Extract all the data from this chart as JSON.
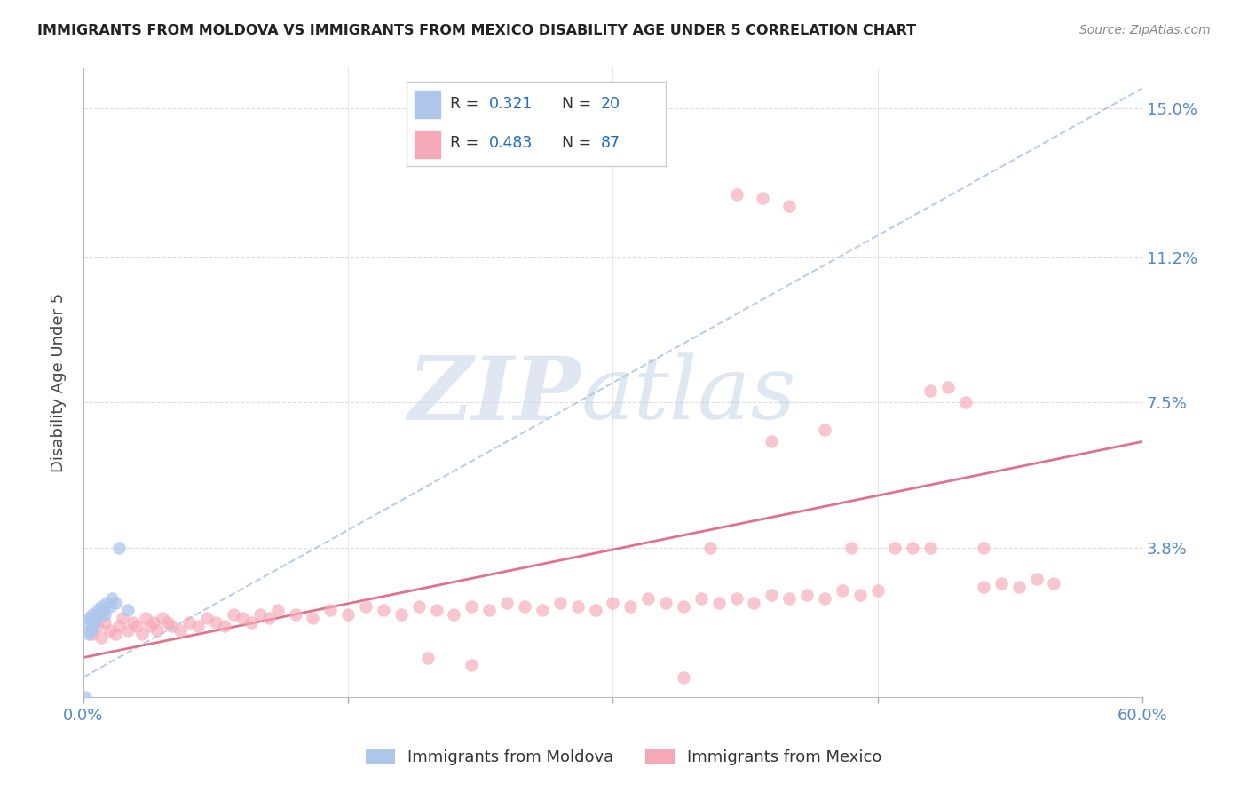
{
  "title": "IMMIGRANTS FROM MOLDOVA VS IMMIGRANTS FROM MEXICO DISABILITY AGE UNDER 5 CORRELATION CHART",
  "source": "Source: ZipAtlas.com",
  "ylabel": "Disability Age Under 5",
  "xlim": [
    0.0,
    0.6
  ],
  "ylim": [
    0.0,
    0.16
  ],
  "xtick_positions": [
    0.0,
    0.15,
    0.3,
    0.45,
    0.6
  ],
  "xticklabels": [
    "0.0%",
    "",
    "",
    "",
    "60.0%"
  ],
  "ytick_positions": [
    0.038,
    0.075,
    0.112,
    0.15
  ],
  "ytick_labels": [
    "3.8%",
    "7.5%",
    "11.2%",
    "15.0%"
  ],
  "moldova_color": "#adc6ea",
  "mexico_color": "#f5a8b8",
  "moldova_line_color": "#a0b8d8",
  "mexico_line_color": "#e06080",
  "moldova_R": "0.321",
  "moldova_N": "20",
  "mexico_R": "0.483",
  "mexico_N": "87",
  "tick_color": "#5588cc",
  "background_color": "#ffffff",
  "grid_color": "#dddddd",
  "ylabel_color": "#444444",
  "title_color": "#222222",
  "source_color": "#888888",
  "legend_label_color": "#333333",
  "legend_value_color": "#1a6fc4",
  "moldova_x": [
    0.001,
    0.002,
    0.003,
    0.003,
    0.004,
    0.005,
    0.005,
    0.006,
    0.007,
    0.008,
    0.009,
    0.01,
    0.011,
    0.012,
    0.013,
    0.015,
    0.016,
    0.018,
    0.02,
    0.025
  ],
  "moldova_y": [
    0.0,
    0.019,
    0.016,
    0.02,
    0.017,
    0.018,
    0.021,
    0.019,
    0.02,
    0.022,
    0.021,
    0.023,
    0.022,
    0.021,
    0.024,
    0.023,
    0.025,
    0.024,
    0.038,
    0.022
  ],
  "mexico_x": [
    0.005,
    0.008,
    0.01,
    0.012,
    0.015,
    0.018,
    0.02,
    0.022,
    0.025,
    0.028,
    0.03,
    0.033,
    0.035,
    0.038,
    0.04,
    0.042,
    0.045,
    0.048,
    0.05,
    0.055,
    0.06,
    0.065,
    0.07,
    0.075,
    0.08,
    0.085,
    0.09,
    0.095,
    0.1,
    0.105,
    0.11,
    0.12,
    0.13,
    0.14,
    0.15,
    0.16,
    0.17,
    0.18,
    0.19,
    0.2,
    0.21,
    0.22,
    0.23,
    0.24,
    0.25,
    0.26,
    0.27,
    0.28,
    0.29,
    0.3,
    0.31,
    0.32,
    0.33,
    0.34,
    0.35,
    0.36,
    0.37,
    0.38,
    0.39,
    0.4,
    0.41,
    0.42,
    0.43,
    0.44,
    0.45,
    0.46,
    0.47,
    0.48,
    0.49,
    0.5,
    0.51,
    0.52,
    0.53,
    0.54,
    0.55,
    0.37,
    0.385,
    0.4,
    0.39,
    0.42,
    0.435,
    0.355,
    0.48,
    0.51,
    0.195,
    0.22,
    0.34
  ],
  "mexico_y": [
    0.016,
    0.018,
    0.015,
    0.019,
    0.017,
    0.016,
    0.018,
    0.02,
    0.017,
    0.019,
    0.018,
    0.016,
    0.02,
    0.018,
    0.019,
    0.017,
    0.02,
    0.019,
    0.018,
    0.017,
    0.019,
    0.018,
    0.02,
    0.019,
    0.018,
    0.021,
    0.02,
    0.019,
    0.021,
    0.02,
    0.022,
    0.021,
    0.02,
    0.022,
    0.021,
    0.023,
    0.022,
    0.021,
    0.023,
    0.022,
    0.021,
    0.023,
    0.022,
    0.024,
    0.023,
    0.022,
    0.024,
    0.023,
    0.022,
    0.024,
    0.023,
    0.025,
    0.024,
    0.023,
    0.025,
    0.024,
    0.025,
    0.024,
    0.026,
    0.025,
    0.026,
    0.025,
    0.027,
    0.026,
    0.027,
    0.038,
    0.038,
    0.078,
    0.079,
    0.075,
    0.028,
    0.029,
    0.028,
    0.03,
    0.029,
    0.128,
    0.127,
    0.125,
    0.065,
    0.068,
    0.038,
    0.038,
    0.038,
    0.038,
    0.01,
    0.008,
    0.005
  ],
  "moldova_line_x": [
    0.0,
    0.6
  ],
  "moldova_line_y": [
    0.005,
    0.155
  ],
  "mexico_line_x": [
    0.0,
    0.6
  ],
  "mexico_line_y": [
    0.01,
    0.065
  ]
}
